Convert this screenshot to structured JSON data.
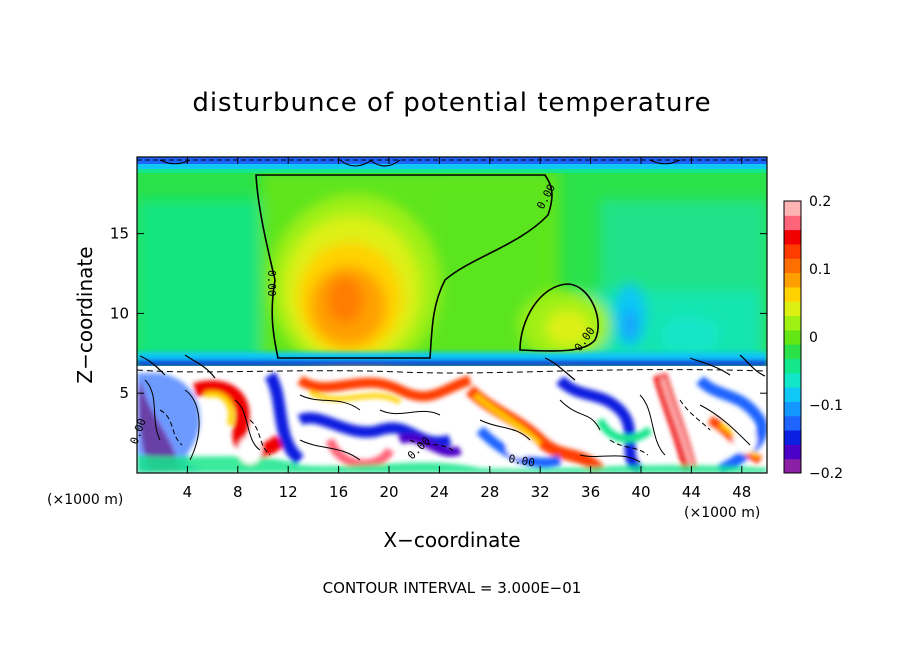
{
  "chart_data": {
    "type": "heatmap",
    "title": "disturbunce of potential temperature",
    "xlabel": "X−coordinate",
    "ylabel": "Z−coordinate",
    "x_unit_label": "(×1000 m)",
    "z_unit_label": "(×1000 m)",
    "xlim": [
      0,
      50
    ],
    "ylim": [
      0,
      19.8
    ],
    "x_ticks": [
      "4",
      "8",
      "12",
      "16",
      "20",
      "24",
      "28",
      "32",
      "36",
      "40",
      "44",
      "48"
    ],
    "x_tick_values": [
      4,
      8,
      12,
      16,
      20,
      24,
      28,
      32,
      36,
      40,
      44,
      48
    ],
    "y_ticks": [
      "5",
      "10",
      "15"
    ],
    "y_tick_values": [
      5,
      10,
      15
    ],
    "colorbar": {
      "range": [
        -0.2,
        0.2
      ],
      "tick_labels": [
        "0.2",
        "0.1",
        "0",
        "−0.1",
        "−0.2"
      ],
      "tick_values": [
        0.2,
        0.1,
        0,
        -0.1,
        -0.2
      ],
      "colors": [
        "#8b1fa6",
        "#4b00c8",
        "#0b1fe0",
        "#1e64ff",
        "#1496ff",
        "#10c8f5",
        "#12e6c8",
        "#14e68c",
        "#2ae14a",
        "#64e614",
        "#a0f014",
        "#dcf014",
        "#ffd200",
        "#ffa000",
        "#ff6e00",
        "#ff3c00",
        "#f00000",
        "#ff6478",
        "#ffb4b4"
      ]
    },
    "contour_interval_text": "CONTOUR INTERVAL = 3.000E−01",
    "contour_labels": [
      "0.00",
      "0.00",
      "0.00",
      "0.00",
      "0.00",
      "0.00"
    ],
    "field_features": [
      {
        "kind": "warm_core",
        "x": 17.5,
        "z": 11,
        "value": 0.12
      },
      {
        "kind": "warm_core",
        "x": 34,
        "z": 10.5,
        "value": 0.05
      },
      {
        "kind": "cold_spot",
        "x": 39,
        "z": 10.5,
        "value": -0.08
      },
      {
        "kind": "layer",
        "z_range": [
          0,
          7
        ],
        "description_value": "turbulent"
      }
    ]
  }
}
